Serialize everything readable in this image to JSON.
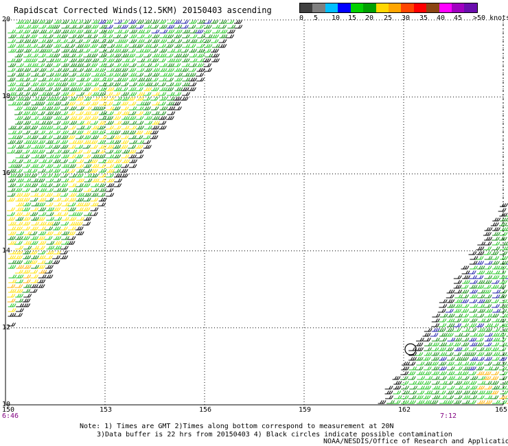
{
  "title": "Rapidscat Corrected Winds(12.5KM) 20150403 ascending",
  "legend": {
    "colors": [
      "#404040",
      "#7f7f7f",
      "#00bfff",
      "#0000ff",
      "#00d000",
      "#00a000",
      "#ffd700",
      "#ffa500",
      "#ff4500",
      "#ff0000",
      "#8b4513",
      "#ff00ff",
      "#a000c0",
      "#6a0dad"
    ],
    "labels": [
      "0",
      "5",
      "10",
      "15",
      "20",
      "25",
      "30",
      "35",
      "40",
      "45",
      ">50 knots"
    ]
  },
  "axes": {
    "lon_ticks": [
      "150",
      "153",
      "156",
      "159",
      "162",
      "165"
    ],
    "lat_ticks": [
      "20",
      "18",
      "16",
      "14",
      "12",
      "10"
    ],
    "time_left": "6:46",
    "time_right": "7:12"
  },
  "notes": {
    "line1": "Note: 1) Times are GMT 2)Times along bottom correspond to measurement at 20N",
    "line2": "3)Data buffer is 22 hrs from 20150403 4) Black circles indicate possible contamination"
  },
  "credit": "NOAA/NESDIS/Office of Research and Applications",
  "chart_data": {
    "type": "wind-barb-map",
    "lon_range": [
      150,
      165
    ],
    "lat_range": [
      10,
      20
    ],
    "grid": true,
    "swaths": [
      {
        "name": "",
        "region": "upper-left",
        "dominant_speed_knots": [
          15,
          20
        ],
        "max_speed_knots": 25
      },
      {
        "name": "",
        "region": "lower-right",
        "dominant_speed_knots": [
          15,
          20
        ],
        "max_speed_knots": 25
      }
    ],
    "contamination_circles": 1
  }
}
